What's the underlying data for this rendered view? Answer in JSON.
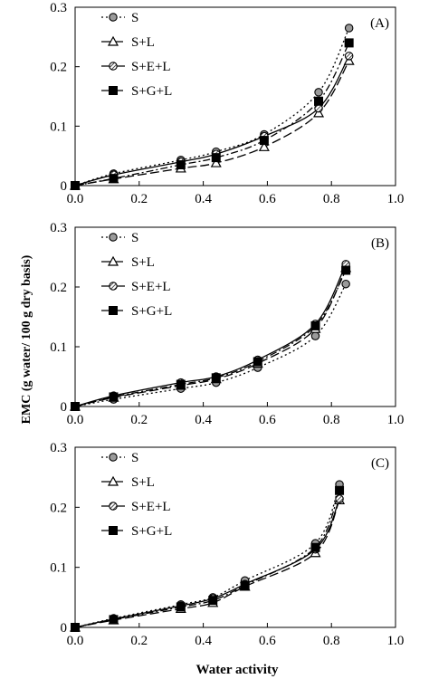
{
  "figure": {
    "xlabel": "Water activity",
    "ylabel": "EMC (g water/ 100 g dry basis)"
  },
  "chart_data": [
    {
      "type": "line",
      "panel_label": "(A)",
      "xlim": [
        0.0,
        1.0
      ],
      "ylim": [
        0.0,
        0.3
      ],
      "xticks": [
        "0.0",
        "0.2",
        "0.4",
        "0.6",
        "0.8",
        "1.0"
      ],
      "yticks": [
        "0",
        "0.1",
        "0.2",
        "0.3"
      ],
      "legend_position": "top-left",
      "series": [
        {
          "name": "S",
          "marker": "circle-gray",
          "dash": "2,3",
          "points": [
            [
              0.0,
              0.0
            ],
            [
              0.12,
              0.02
            ],
            [
              0.33,
              0.043
            ],
            [
              0.44,
              0.057
            ],
            [
              0.59,
              0.086
            ],
            [
              0.76,
              0.157
            ],
            [
              0.855,
              0.265
            ]
          ]
        },
        {
          "name": "S+L",
          "marker": "triangle",
          "dash": "10,4",
          "points": [
            [
              0.0,
              0.0
            ],
            [
              0.12,
              0.011
            ],
            [
              0.33,
              0.029
            ],
            [
              0.44,
              0.038
            ],
            [
              0.59,
              0.065
            ],
            [
              0.76,
              0.122
            ],
            [
              0.855,
              0.21
            ]
          ]
        },
        {
          "name": "S+E+L",
          "marker": "circle-hatched",
          "dash": "",
          "points": [
            [
              0.0,
              0.0
            ],
            [
              0.12,
              0.018
            ],
            [
              0.33,
              0.04
            ],
            [
              0.44,
              0.053
            ],
            [
              0.59,
              0.083
            ],
            [
              0.76,
              0.13
            ],
            [
              0.855,
              0.218
            ]
          ]
        },
        {
          "name": "S+G+L",
          "marker": "square",
          "dash": "8,3,2,3",
          "points": [
            [
              0.0,
              0.0
            ],
            [
              0.12,
              0.012
            ],
            [
              0.33,
              0.035
            ],
            [
              0.44,
              0.047
            ],
            [
              0.59,
              0.076
            ],
            [
              0.76,
              0.142
            ],
            [
              0.855,
              0.24
            ]
          ]
        }
      ]
    },
    {
      "type": "line",
      "panel_label": "(B)",
      "xlim": [
        0.0,
        1.0
      ],
      "ylim": [
        0.0,
        0.3
      ],
      "xticks": [
        "0.0",
        "0.2",
        "0.4",
        "0.6",
        "0.8",
        "1.0"
      ],
      "yticks": [
        "0",
        "0.1",
        "0.2",
        "0.3"
      ],
      "legend_position": "top-left",
      "series": [
        {
          "name": "S",
          "marker": "circle-gray",
          "dash": "2,3",
          "points": [
            [
              0.0,
              0.0
            ],
            [
              0.12,
              0.012
            ],
            [
              0.33,
              0.03
            ],
            [
              0.44,
              0.04
            ],
            [
              0.57,
              0.065
            ],
            [
              0.75,
              0.118
            ],
            [
              0.845,
              0.205
            ]
          ]
        },
        {
          "name": "S+L",
          "marker": "triangle",
          "dash": "10,4",
          "points": [
            [
              0.0,
              0.0
            ],
            [
              0.12,
              0.015
            ],
            [
              0.33,
              0.035
            ],
            [
              0.44,
              0.046
            ],
            [
              0.57,
              0.072
            ],
            [
              0.75,
              0.13
            ],
            [
              0.845,
              0.232
            ]
          ]
        },
        {
          "name": "S+E+L",
          "marker": "circle-hatched",
          "dash": "",
          "points": [
            [
              0.0,
              0.0
            ],
            [
              0.12,
              0.018
            ],
            [
              0.33,
              0.04
            ],
            [
              0.44,
              0.05
            ],
            [
              0.57,
              0.078
            ],
            [
              0.75,
              0.138
            ],
            [
              0.845,
              0.238
            ]
          ]
        },
        {
          "name": "S+G+L",
          "marker": "square",
          "dash": "8,3,2,3",
          "points": [
            [
              0.0,
              0.0
            ],
            [
              0.12,
              0.016
            ],
            [
              0.33,
              0.037
            ],
            [
              0.44,
              0.048
            ],
            [
              0.57,
              0.075
            ],
            [
              0.75,
              0.135
            ],
            [
              0.845,
              0.228
            ]
          ]
        }
      ]
    },
    {
      "type": "line",
      "panel_label": "(C)",
      "xlim": [
        0.0,
        1.0
      ],
      "ylim": [
        0.0,
        0.3
      ],
      "xticks": [
        "0.0",
        "0.2",
        "0.4",
        "0.6",
        "0.8",
        "1.0"
      ],
      "yticks": [
        "0",
        "0.1",
        "0.2",
        "0.3"
      ],
      "legend_position": "top-left",
      "series": [
        {
          "name": "S",
          "marker": "circle-gray",
          "dash": "2,3",
          "points": [
            [
              0.0,
              0.0
            ],
            [
              0.12,
              0.015
            ],
            [
              0.33,
              0.038
            ],
            [
              0.43,
              0.05
            ],
            [
              0.53,
              0.078
            ],
            [
              0.75,
              0.14
            ],
            [
              0.825,
              0.238
            ]
          ]
        },
        {
          "name": "S+L",
          "marker": "triangle",
          "dash": "10,4",
          "points": [
            [
              0.0,
              0.0
            ],
            [
              0.12,
              0.012
            ],
            [
              0.33,
              0.031
            ],
            [
              0.43,
              0.041
            ],
            [
              0.53,
              0.068
            ],
            [
              0.75,
              0.124
            ],
            [
              0.825,
              0.212
            ]
          ]
        },
        {
          "name": "S+E+L",
          "marker": "circle-hatched",
          "dash": "",
          "points": [
            [
              0.0,
              0.0
            ],
            [
              0.12,
              0.014
            ],
            [
              0.33,
              0.036
            ],
            [
              0.43,
              0.048
            ],
            [
              0.53,
              0.072
            ],
            [
              0.75,
              0.13
            ],
            [
              0.825,
              0.214
            ]
          ]
        },
        {
          "name": "S+G+L",
          "marker": "square",
          "dash": "8,3,2,3",
          "points": [
            [
              0.0,
              0.0
            ],
            [
              0.12,
              0.013
            ],
            [
              0.33,
              0.034
            ],
            [
              0.43,
              0.045
            ],
            [
              0.53,
              0.07
            ],
            [
              0.75,
              0.133
            ],
            [
              0.825,
              0.228
            ]
          ]
        }
      ]
    }
  ]
}
